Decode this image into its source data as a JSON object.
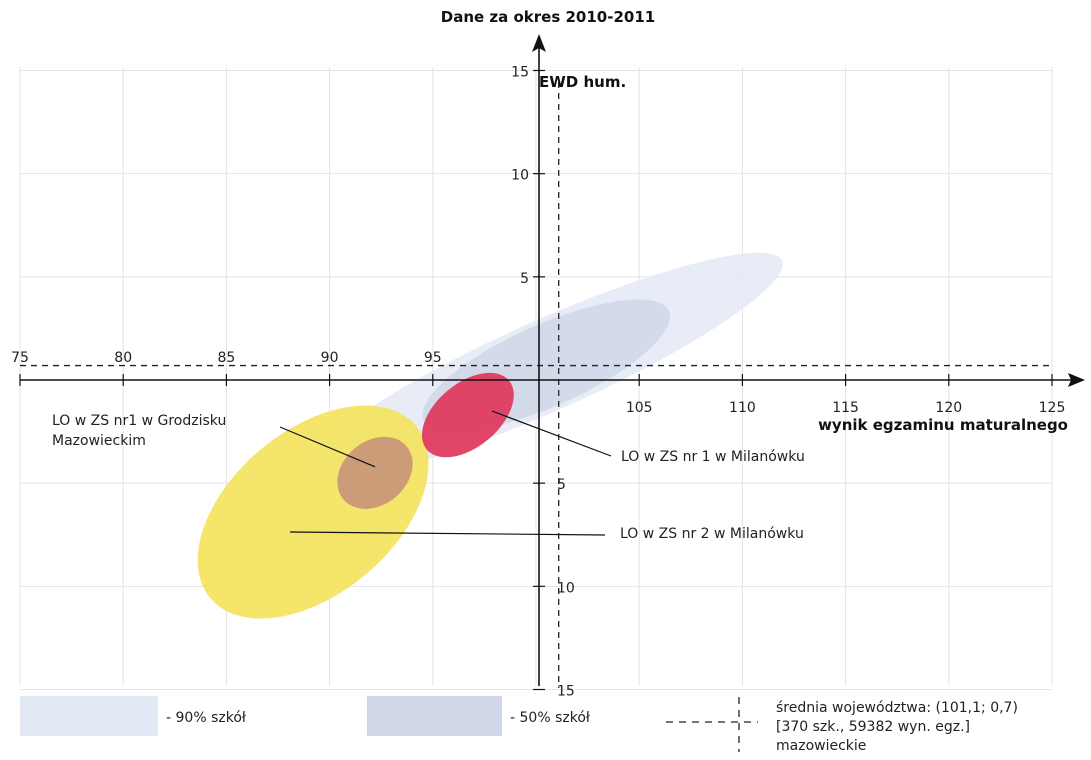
{
  "chart_data": {
    "type": "scatter",
    "title": "Dane za okres 2010-2011",
    "xlabel": "wynik egzaminu maturalnego",
    "ylabel": "EWD hum.",
    "xlim": [
      75,
      126
    ],
    "ylim": [
      -15,
      15
    ],
    "x_ticks": [
      75,
      80,
      85,
      90,
      95,
      105,
      110,
      115,
      120,
      125
    ],
    "y_ticks": [
      15,
      10,
      5,
      -5,
      -10,
      -15
    ],
    "x_tick_labels": [
      "75",
      "80",
      "85",
      "90",
      "95",
      "105",
      "110",
      "115",
      "120",
      "125"
    ],
    "y_tick_labels": [
      "15",
      "10",
      "5",
      "5",
      "10",
      "15"
    ],
    "grid": true,
    "reference_lines": {
      "x_mean": 101.1,
      "y_mean": 0.7
    },
    "regions": [
      {
        "name": "- 90% szkół",
        "color": "#e3e9f4",
        "center_x": 100.5,
        "center_y": 0.7,
        "rx": 12.5,
        "ry": 1.0,
        "angle_deg": -24
      },
      {
        "name": "- 50% szkół",
        "color": "#cfd7e8",
        "center_x": 100.5,
        "center_y": 0.7,
        "rx": 6.5,
        "ry": 0.9,
        "angle_deg": -24
      }
    ],
    "series": [
      {
        "name": "LO w ZS nr1 w Grodzisku Mazowieckim",
        "center_x": 92.2,
        "center_y": -4.5,
        "rx": 2.0,
        "ry": 0.7,
        "angle_deg": -40,
        "color": "#c8927a"
      },
      {
        "name": "LO w ZS nr 1 w Milanówku",
        "center_x": 96.7,
        "center_y": -1.7,
        "rx": 2.6,
        "ry": 0.7,
        "angle_deg": -40,
        "color": "#e0365a"
      },
      {
        "name": "LO w ZS nr 2 w Milanówku",
        "center_x": 89.2,
        "center_y": -6.4,
        "rx": 6.5,
        "ry": 1.8,
        "angle_deg": -40,
        "color": "#f4e35e"
      }
    ],
    "legend": {
      "placement": "bottom",
      "mean_label_lines": [
        "średnia województwa: (101,1; 0,7)",
        "[370 szk., 59382 wyn. egz.]",
        "mazowieckie"
      ]
    }
  }
}
